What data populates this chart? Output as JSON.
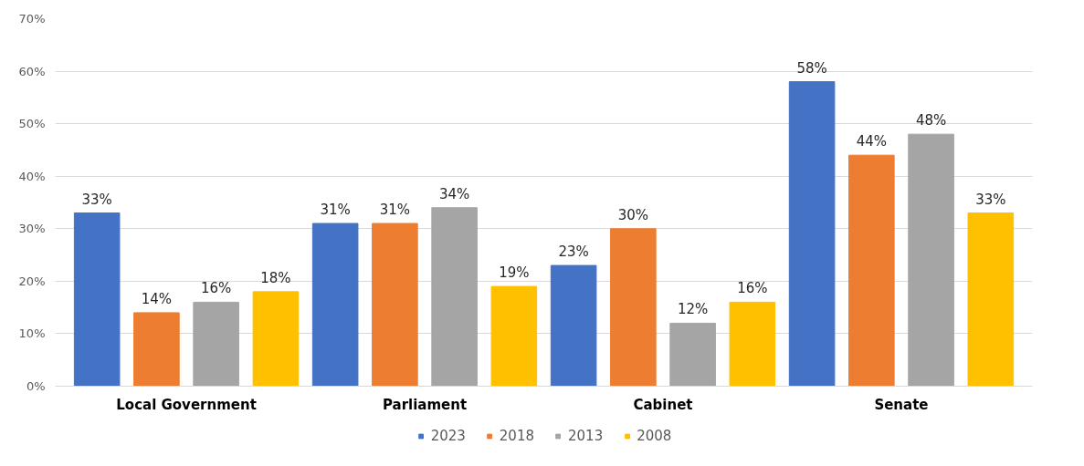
{
  "chart_data": {
    "type": "bar",
    "categories": [
      "Local Government",
      "Parliament",
      "Cabinet",
      "Senate"
    ],
    "series": [
      {
        "name": "2023",
        "color": "#4472c4",
        "values": [
          33,
          31,
          23,
          58
        ],
        "value_labels": [
          "33%",
          "31%",
          "23%",
          "58%"
        ]
      },
      {
        "name": "2018",
        "color": "#ed7d31",
        "values": [
          14,
          31,
          30,
          44
        ],
        "value_labels": [
          "14%",
          "31%",
          "30%",
          "44%"
        ]
      },
      {
        "name": "2013",
        "color": "#a5a5a5",
        "values": [
          16,
          34,
          12,
          48
        ],
        "value_labels": [
          "16%",
          "34%",
          "12%",
          "48%"
        ]
      },
      {
        "name": "2008",
        "color": "#ffc000",
        "values": [
          18,
          19,
          16,
          33
        ],
        "value_labels": [
          "18%",
          "19%",
          "16%",
          "33%"
        ]
      }
    ],
    "ylim": [
      0,
      70
    ],
    "yticks": [
      {
        "value": 0,
        "label": "0%"
      },
      {
        "value": 10,
        "label": "10%"
      },
      {
        "value": 20,
        "label": "20%"
      },
      {
        "value": 30,
        "label": "30%"
      },
      {
        "value": 40,
        "label": "40%"
      },
      {
        "value": 50,
        "label": "50%"
      },
      {
        "value": 60,
        "label": "60%"
      },
      {
        "value": 70,
        "label": "70%"
      }
    ],
    "grid": "y",
    "legend": "bottom"
  }
}
